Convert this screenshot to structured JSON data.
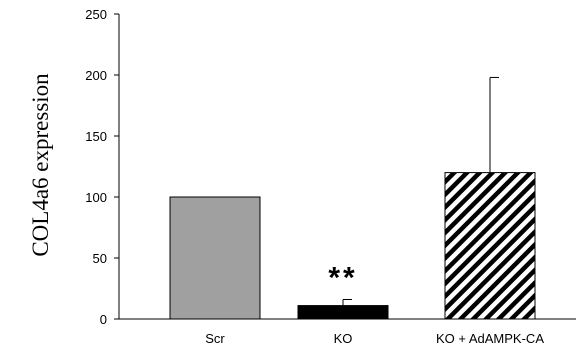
{
  "chart_data": {
    "type": "bar",
    "title": "",
    "xlabel": "",
    "ylabel": "COL4a6 expression",
    "ylim": [
      0,
      250
    ],
    "yticks": [
      0,
      50,
      100,
      150,
      200,
      250
    ],
    "grid": false,
    "categories": [
      "Scr",
      "KO",
      "KO + AdAMPK-CA"
    ],
    "values": [
      100,
      11,
      120
    ],
    "error_upper": [
      0,
      5,
      78
    ],
    "bar_styles": [
      {
        "fill": "#a0a0a0",
        "pattern": "solid"
      },
      {
        "fill": "#000000",
        "pattern": "solid"
      },
      {
        "fill": "#000000",
        "pattern": "diagonal-stripes"
      }
    ],
    "annotations": [
      {
        "category": "KO",
        "text": "**"
      }
    ]
  }
}
